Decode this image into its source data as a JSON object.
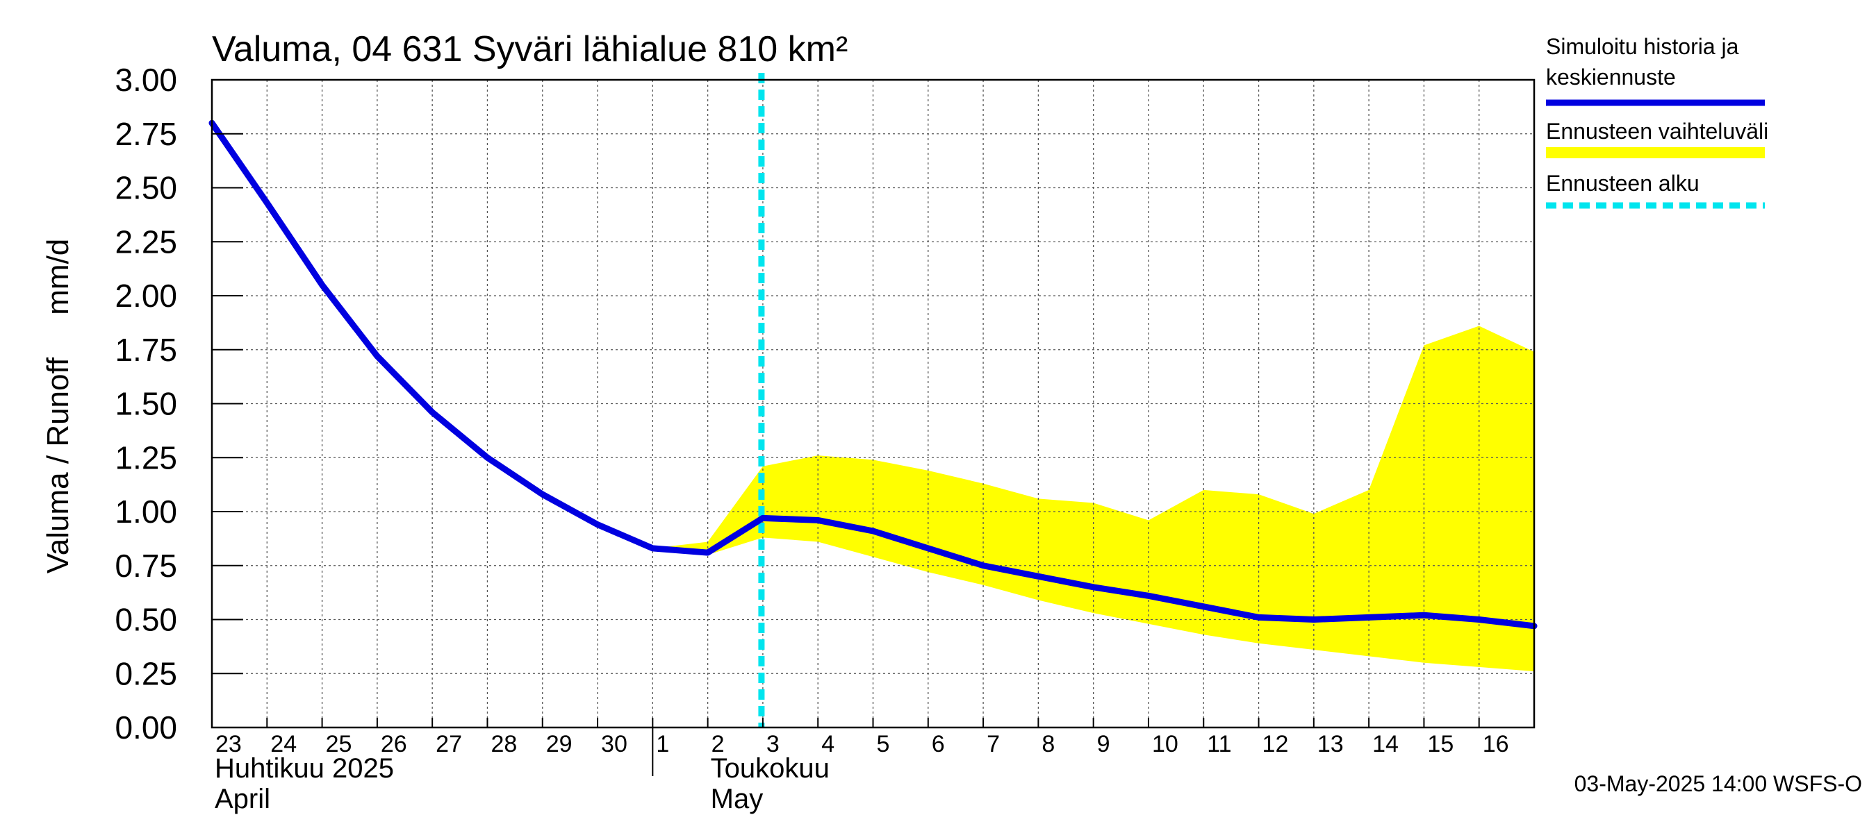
{
  "chart_data": {
    "type": "line",
    "title": "Valuma, 04 631 Syväri lähialue 810 km²",
    "ylabel": "Valuma / Runoff     mm/d",
    "ylim": [
      0,
      3.0
    ],
    "yticks": [
      "0.00",
      "0.25",
      "0.50",
      "0.75",
      "1.00",
      "1.25",
      "1.50",
      "1.75",
      "2.00",
      "2.25",
      "2.50",
      "2.75",
      "3.00"
    ],
    "x_range": [
      "2025-04-23",
      "2025-05-17"
    ],
    "x_ticks": [
      {
        "date": "2025-04-23",
        "label": "23"
      },
      {
        "date": "2025-04-24",
        "label": "24"
      },
      {
        "date": "2025-04-25",
        "label": "25"
      },
      {
        "date": "2025-04-26",
        "label": "26"
      },
      {
        "date": "2025-04-27",
        "label": "27"
      },
      {
        "date": "2025-04-28",
        "label": "28"
      },
      {
        "date": "2025-04-29",
        "label": "29"
      },
      {
        "date": "2025-04-30",
        "label": "30"
      },
      {
        "date": "2025-05-01",
        "label": "1"
      },
      {
        "date": "2025-05-02",
        "label": "2"
      },
      {
        "date": "2025-05-03",
        "label": "3"
      },
      {
        "date": "2025-05-04",
        "label": "4"
      },
      {
        "date": "2025-05-05",
        "label": "5"
      },
      {
        "date": "2025-05-06",
        "label": "6"
      },
      {
        "date": "2025-05-07",
        "label": "7"
      },
      {
        "date": "2025-05-08",
        "label": "8"
      },
      {
        "date": "2025-05-09",
        "label": "9"
      },
      {
        "date": "2025-05-10",
        "label": "10"
      },
      {
        "date": "2025-05-11",
        "label": "11"
      },
      {
        "date": "2025-05-12",
        "label": "12"
      },
      {
        "date": "2025-05-13",
        "label": "13"
      },
      {
        "date": "2025-05-14",
        "label": "14"
      },
      {
        "date": "2025-05-15",
        "label": "15"
      },
      {
        "date": "2025-05-16",
        "label": "16"
      }
    ],
    "month_labels": [
      {
        "date": "2025-04-23",
        "lines": [
          "Huhtikuu  2025",
          "April"
        ]
      },
      {
        "date": "2025-05-02",
        "lines": [
          "Toukokuu",
          "May"
        ]
      }
    ],
    "month_boundary": "2025-05-01",
    "forecast_start": "2025-05-03",
    "series": [
      {
        "name": "Simuloitu historia ja keskiennuste",
        "color": "#0000e0",
        "points": [
          [
            "2025-04-23",
            2.8
          ],
          [
            "2025-04-24",
            2.43
          ],
          [
            "2025-04-25",
            2.05
          ],
          [
            "2025-04-26",
            1.72
          ],
          [
            "2025-04-27",
            1.46
          ],
          [
            "2025-04-28",
            1.25
          ],
          [
            "2025-04-29",
            1.08
          ],
          [
            "2025-04-30",
            0.94
          ],
          [
            "2025-05-01",
            0.83
          ],
          [
            "2025-05-02",
            0.81
          ],
          [
            "2025-05-03",
            0.97
          ],
          [
            "2025-05-04",
            0.96
          ],
          [
            "2025-05-05",
            0.91
          ],
          [
            "2025-05-06",
            0.83
          ],
          [
            "2025-05-07",
            0.75
          ],
          [
            "2025-05-08",
            0.7
          ],
          [
            "2025-05-09",
            0.65
          ],
          [
            "2025-05-10",
            0.61
          ],
          [
            "2025-05-11",
            0.56
          ],
          [
            "2025-05-12",
            0.51
          ],
          [
            "2025-05-13",
            0.5
          ],
          [
            "2025-05-14",
            0.51
          ],
          [
            "2025-05-15",
            0.52
          ],
          [
            "2025-05-16",
            0.5
          ],
          [
            "2025-05-17",
            0.47
          ]
        ]
      },
      {
        "name": "Ennusteen vaihteluväli",
        "type": "area",
        "color": "#ffff00",
        "upper": [
          [
            "2025-05-01",
            0.83
          ],
          [
            "2025-05-02",
            0.86
          ],
          [
            "2025-05-03",
            1.21
          ],
          [
            "2025-05-04",
            1.26
          ],
          [
            "2025-05-05",
            1.24
          ],
          [
            "2025-05-06",
            1.19
          ],
          [
            "2025-05-07",
            1.13
          ],
          [
            "2025-05-08",
            1.06
          ],
          [
            "2025-05-09",
            1.04
          ],
          [
            "2025-05-10",
            0.96
          ],
          [
            "2025-05-11",
            1.1
          ],
          [
            "2025-05-12",
            1.08
          ],
          [
            "2025-05-13",
            0.99
          ],
          [
            "2025-05-14",
            1.1
          ],
          [
            "2025-05-15",
            1.77
          ],
          [
            "2025-05-16",
            1.86
          ],
          [
            "2025-05-17",
            1.74
          ]
        ],
        "lower": [
          [
            "2025-05-01",
            0.83
          ],
          [
            "2025-05-02",
            0.8
          ],
          [
            "2025-05-03",
            0.88
          ],
          [
            "2025-05-04",
            0.86
          ],
          [
            "2025-05-05",
            0.79
          ],
          [
            "2025-05-06",
            0.72
          ],
          [
            "2025-05-07",
            0.66
          ],
          [
            "2025-05-08",
            0.59
          ],
          [
            "2025-05-09",
            0.53
          ],
          [
            "2025-05-10",
            0.48
          ],
          [
            "2025-05-11",
            0.43
          ],
          [
            "2025-05-12",
            0.39
          ],
          [
            "2025-05-13",
            0.36
          ],
          [
            "2025-05-14",
            0.33
          ],
          [
            "2025-05-15",
            0.3
          ],
          [
            "2025-05-16",
            0.28
          ],
          [
            "2025-05-17",
            0.26
          ]
        ]
      },
      {
        "name": "Ennusteen alku",
        "type": "vline",
        "color": "#00e5ee"
      }
    ],
    "legend": [
      {
        "label": "Simuloitu historia ja keskiennuste",
        "lines": [
          "Simuloitu historia ja",
          "keskiennuste"
        ],
        "color": "#0000e0",
        "style": "line"
      },
      {
        "label": "Ennusteen vaihteluväli",
        "lines": [
          "Ennusteen vaihteluväli"
        ],
        "color": "#ffff00",
        "style": "band"
      },
      {
        "label": "Ennusteen alku",
        "lines": [
          "Ennusteen alku"
        ],
        "color": "#00e5ee",
        "style": "dashed"
      }
    ],
    "legend_position": "right",
    "grid": true,
    "footer": "03-May-2025 14:00 WSFS-O"
  }
}
